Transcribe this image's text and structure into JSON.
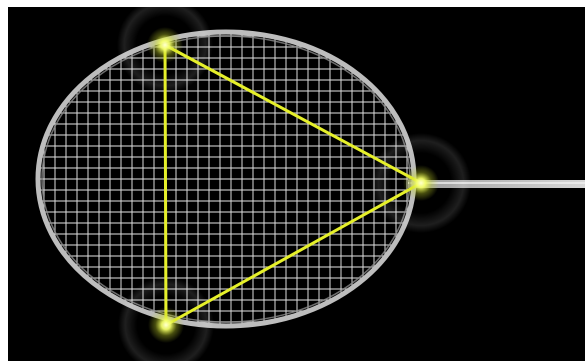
{
  "image": {
    "subject": "badminton-racket-head",
    "colors": {
      "background": "#000000",
      "frame_border": "#ffffff",
      "strings": "#d9d9d9",
      "racket_frame": "#cfcfcf",
      "triangle": "#e6f02a",
      "glow": "#f4ff6a"
    }
  }
}
